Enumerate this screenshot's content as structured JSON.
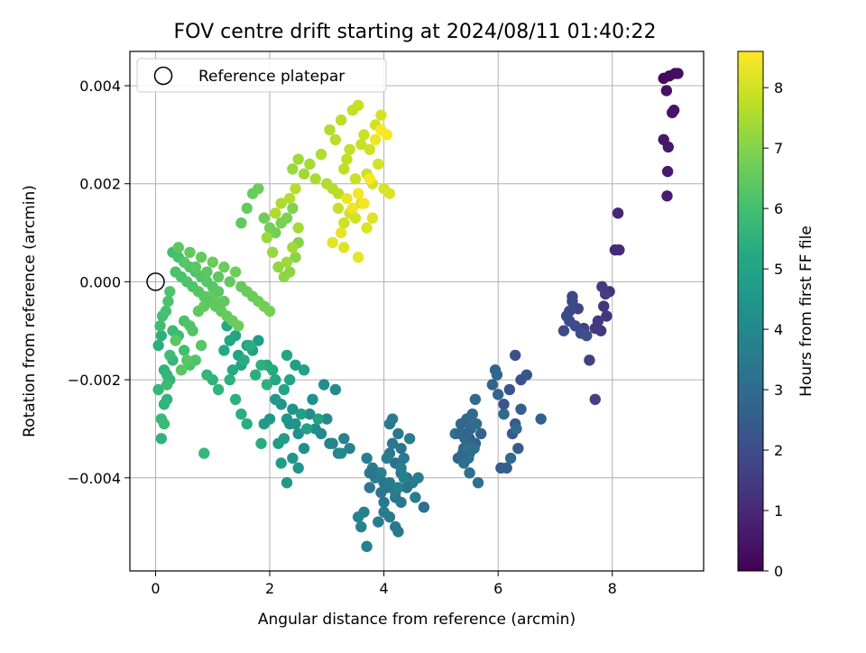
{
  "chart_data": {
    "type": "scatter",
    "title": "FOV centre drift starting at 2024/08/11 01:40:22",
    "xlabel": "Angular distance from reference (arcmin)",
    "ylabel": "Rotation from reference (arcmin)",
    "xlim": [
      -0.45,
      9.6
    ],
    "ylim": [
      -0.0059,
      0.0047
    ],
    "xticks": [
      0,
      2,
      4,
      6,
      8
    ],
    "xtick_labels": [
      "0",
      "2",
      "4",
      "6",
      "8"
    ],
    "yticks": [
      0.004,
      0.002,
      0.0,
      -0.002,
      -0.004
    ],
    "ytick_labels": [
      "0.004",
      "0.002",
      "0.000",
      "−0.002",
      "−0.004"
    ],
    "grid": true,
    "legend": {
      "position": "top-left",
      "entries": [
        {
          "label": "Reference platepar",
          "marker": "open-circle"
        }
      ]
    },
    "reference_point": {
      "x": 0,
      "y": 0
    },
    "colorbar": {
      "label": "Hours from first FF file",
      "colormap": "viridis",
      "range": [
        0,
        8.6
      ],
      "ticks": [
        0,
        1,
        2,
        3,
        4,
        5,
        6,
        7,
        8
      ],
      "tick_labels": [
        "0",
        "1",
        "2",
        "3",
        "4",
        "5",
        "6",
        "7",
        "8"
      ]
    },
    "series": [
      {
        "color_by": "hours",
        "x": [
          8.9,
          9.0,
          9.1,
          9.15,
          8.95,
          9.05,
          9.08,
          8.9,
          8.98,
          8.97,
          8.96,
          8.1,
          8.05,
          8.12,
          7.95,
          7.85,
          7.9,
          7.8,
          7.7,
          7.75,
          7.82,
          7.88,
          7.6,
          7.7,
          7.5,
          7.4,
          7.3,
          7.2,
          7.15,
          7.25,
          7.35,
          7.45,
          7.55,
          7.3,
          7.25,
          6.3,
          6.4,
          6.2,
          6.1,
          6.5,
          6.3,
          6.25,
          6.35,
          6.05,
          6.15,
          6.4,
          6.75,
          5.95,
          5.9,
          6.0,
          5.98,
          6.1,
          6.32,
          6.22,
          5.6,
          5.7,
          5.5,
          5.4,
          5.3,
          5.35,
          5.45,
          5.55,
          5.6,
          5.5,
          5.4,
          5.25,
          5.5,
          5.65,
          5.6,
          5.45,
          5.52,
          5.42,
          5.58,
          5.48,
          5.38,
          5.62,
          5.47,
          5.33,
          4.7,
          4.4,
          4.3,
          4.2,
          4.1,
          4.3,
          4.15,
          4.25,
          4.35,
          4.5,
          4.6,
          4.05,
          4.0,
          3.95,
          3.9,
          3.8,
          3.75,
          3.7,
          3.85,
          4.2,
          4.3,
          4.1,
          4.0,
          3.9,
          4.4,
          4.2,
          4.25,
          4.1,
          4.15,
          4.45,
          4.55,
          3.65,
          3.6,
          3.55,
          3.7,
          3.8,
          3.75,
          4.0,
          4.1,
          4.2,
          4.3,
          4.05,
          3.95,
          4.35,
          4.25,
          3.4,
          3.3,
          3.2,
          3.1,
          3.0,
          2.9,
          2.8,
          2.7,
          2.6,
          2.5,
          2.45,
          2.4,
          2.35,
          2.3,
          2.2,
          2.1,
          2.0,
          1.9,
          2.15,
          2.25,
          2.55,
          2.65,
          2.85,
          3.05,
          3.25,
          3.15,
          2.95,
          2.75,
          2.5,
          2.4,
          2.3,
          2.2,
          2.45,
          2.6,
          2.3,
          2.35,
          2.25,
          2.1,
          1.95,
          2.05,
          1.8,
          1.7,
          1.6,
          1.5,
          1.45,
          1.4,
          1.3,
          1.2,
          1.25,
          1.35,
          1.55,
          1.65,
          1.75,
          1.85,
          1.95,
          1.85,
          1.6,
          1.5,
          1.4,
          1.3,
          1.0,
          1.1,
          0.9,
          0.85,
          0.05,
          0.1,
          0.15,
          0.2,
          0.25,
          0.3,
          0.05,
          0.1,
          0.15,
          0.2,
          0.25,
          0.08,
          0.12,
          0.18,
          0.22,
          0.1,
          0.15,
          0.2,
          0.3,
          0.4,
          0.5,
          0.6,
          0.7,
          0.8,
          0.5,
          0.6,
          0.65,
          0.55,
          0.45,
          0.35,
          0.75,
          0.85,
          0.95,
          1.05,
          0.3,
          0.4,
          0.5,
          0.6,
          0.7,
          0.8,
          0.9,
          1.0,
          1.1,
          1.2,
          0.35,
          0.45,
          0.55,
          0.65,
          0.75,
          0.85,
          0.95,
          1.05,
          1.15,
          1.25,
          1.35,
          1.45,
          0.25,
          0.5,
          0.7,
          0.9,
          1.1,
          1.3,
          1.5,
          1.6,
          1.7,
          1.8,
          1.9,
          2.0,
          0.4,
          0.6,
          0.8,
          1.0,
          1.2,
          1.4,
          1.5,
          1.6,
          1.7,
          1.8,
          1.9,
          2.0,
          2.1,
          2.2,
          2.3,
          2.4,
          2.5,
          2.45,
          2.35,
          2.25,
          2.15,
          2.05,
          1.95,
          2.3,
          2.4,
          2.5,
          2.2,
          2.1,
          2.35,
          2.45,
          2.4,
          2.5,
          2.6,
          2.7,
          2.8,
          2.9,
          3.0,
          3.1,
          3.2,
          3.3,
          3.4,
          3.5,
          3.6,
          3.7,
          3.8,
          3.9,
          4.0,
          4.1,
          3.05,
          3.15,
          3.25,
          3.35,
          3.45,
          3.55,
          3.65,
          3.75,
          3.85,
          3.95,
          3.2,
          3.3,
          3.4,
          3.5,
          3.6,
          3.7,
          3.8,
          3.1,
          3.25,
          3.35,
          3.45,
          3.55,
          3.65,
          3.75,
          3.3,
          3.55,
          3.85,
          4.05,
          3.95
        ],
        "y": [
          0.00415,
          0.0042,
          0.00425,
          0.00425,
          0.0039,
          0.00345,
          0.0035,
          0.0029,
          0.00275,
          0.00225,
          0.00175,
          0.0014,
          0.00065,
          0.00065,
          -0.0002,
          -0.0005,
          -0.0007,
          -0.001,
          -0.00095,
          -0.0008,
          -0.0001,
          -0.00025,
          -0.0016,
          -0.0024,
          -0.00095,
          -0.00055,
          -0.0003,
          -0.0007,
          -0.001,
          -0.0008,
          -0.0009,
          -0.00105,
          -0.0011,
          -0.0004,
          -0.0006,
          -0.0015,
          -0.002,
          -0.0022,
          -0.0025,
          -0.0019,
          -0.0029,
          -0.0031,
          -0.0034,
          -0.0038,
          -0.0038,
          -0.0026,
          -0.0028,
          -0.0018,
          -0.0021,
          -0.0023,
          -0.0019,
          -0.0027,
          -0.003,
          -0.0036,
          -0.0033,
          -0.0031,
          -0.0032,
          -0.0034,
          -0.0036,
          -0.0029,
          -0.0028,
          -0.0027,
          -0.0024,
          -0.0035,
          -0.0037,
          -0.0031,
          -0.0039,
          -0.0041,
          -0.0033,
          -0.0031,
          -0.003,
          -0.0032,
          -0.0034,
          -0.0036,
          -0.0035,
          -0.0029,
          -0.0034,
          -0.0031,
          -0.0046,
          -0.004,
          -0.0039,
          -0.0037,
          -0.0035,
          -0.0034,
          -0.0033,
          -0.0031,
          -0.0036,
          -0.0041,
          -0.004,
          -0.0042,
          -0.0041,
          -0.0043,
          -0.0039,
          -0.0038,
          -0.0039,
          -0.0036,
          -0.004,
          -0.0044,
          -0.0045,
          -0.0048,
          -0.0047,
          -0.0049,
          -0.0042,
          -0.005,
          -0.0051,
          -0.0029,
          -0.0028,
          -0.0032,
          -0.0044,
          -0.0047,
          -0.005,
          -0.0048,
          -0.0054,
          -0.0039,
          -0.0042,
          -0.0045,
          -0.0041,
          -0.0043,
          -0.0038,
          -0.0036,
          -0.0039,
          -0.004,
          -0.0042,
          -0.0034,
          -0.0032,
          -0.0035,
          -0.0033,
          -0.0028,
          -0.0031,
          -0.003,
          -0.0027,
          -0.0034,
          -0.0031,
          -0.0029,
          -0.0026,
          -0.0029,
          -0.0028,
          -0.0025,
          -0.0024,
          -0.0028,
          -0.0029,
          -0.0033,
          -0.0032,
          -0.0027,
          -0.003,
          -0.0028,
          -0.0033,
          -0.0035,
          -0.0022,
          -0.0021,
          -0.0024,
          -0.0038,
          -0.0036,
          -0.0041,
          -0.0037,
          -0.0017,
          -0.0018,
          -0.0015,
          -0.002,
          -0.0022,
          -0.002,
          -0.0017,
          -0.0018,
          -0.0012,
          -0.0014,
          -0.0013,
          -0.0017,
          -0.0015,
          -0.0011,
          -0.0012,
          -0.0014,
          -0.0009,
          -0.0018,
          -0.0016,
          -0.0013,
          -0.0019,
          -0.0017,
          -0.0021,
          -0.0033,
          -0.0029,
          -0.0027,
          -0.0024,
          -0.002,
          -0.002,
          -0.0022,
          -0.0019,
          -0.0035,
          -0.0013,
          -0.0011,
          -0.0018,
          -0.0024,
          -0.002,
          -0.0016,
          -0.0022,
          -0.0028,
          -0.0029,
          -0.0021,
          -0.0015,
          -0.0009,
          -0.0007,
          -0.0006,
          -0.0004,
          -0.0032,
          -0.0025,
          -0.0019,
          -0.001,
          -0.0011,
          -0.0014,
          -0.0017,
          -0.0016,
          -0.0013,
          -0.0008,
          -0.0009,
          -0.001,
          -0.0016,
          -0.0018,
          -0.0012,
          -0.0006,
          -0.0005,
          -0.0003,
          -0.0004,
          0.0006,
          0.0005,
          0.0004,
          0.0003,
          0.0002,
          0.0001,
          0.0,
          -0.0001,
          -0.0002,
          -0.0004,
          0.0002,
          0.0001,
          0.0,
          -0.0001,
          -0.0002,
          -0.0003,
          -0.0004,
          -0.0005,
          -0.0006,
          -0.0007,
          -0.0008,
          -0.0009,
          -0.0002,
          0.0004,
          0.0003,
          0.0002,
          0.0001,
          0.0,
          -0.0001,
          -0.0002,
          -0.0003,
          -0.0004,
          -0.0005,
          -0.0006,
          0.0007,
          0.0006,
          0.0005,
          0.0004,
          0.0003,
          0.0002,
          0.0012,
          0.0015,
          0.0018,
          0.0019,
          0.0013,
          0.0011,
          0.001,
          0.0012,
          0.0013,
          0.0015,
          0.0008,
          0.0005,
          0.0002,
          0.0001,
          0.0003,
          0.0006,
          0.0009,
          0.0004,
          0.0007,
          0.0011,
          0.0016,
          0.0014,
          0.0017,
          0.0019,
          0.0023,
          0.0025,
          0.0022,
          0.0024,
          0.0021,
          0.0026,
          0.002,
          0.0019,
          0.0018,
          0.0023,
          0.0027,
          0.0021,
          0.0028,
          0.0022,
          0.002,
          0.0024,
          0.0019,
          0.0018,
          0.0031,
          0.0029,
          0.0033,
          0.0025,
          0.0035,
          0.0036,
          0.003,
          0.0027,
          0.0032,
          0.0034,
          0.0015,
          0.0012,
          0.0014,
          0.0013,
          0.0016,
          0.0011,
          0.0013,
          0.0008,
          0.001,
          0.0017,
          0.0015,
          0.0018,
          0.0016,
          0.0021,
          0.0007,
          0.0005,
          0.0029,
          0.003,
          0.0031
        ],
        "hours": [
          0.2,
          0.25,
          0.3,
          0.35,
          0.4,
          0.45,
          0.5,
          0.55,
          0.6,
          0.65,
          0.7,
          0.9,
          1.0,
          1.05,
          1.2,
          1.25,
          1.3,
          1.35,
          1.4,
          1.45,
          1.5,
          1.55,
          1.6,
          1.65,
          1.7,
          1.75,
          1.8,
          1.85,
          1.9,
          1.95,
          2.0,
          2.05,
          2.1,
          1.85,
          1.9,
          2.1,
          2.15,
          2.2,
          2.25,
          2.3,
          2.35,
          2.4,
          2.45,
          2.5,
          2.55,
          2.6,
          2.65,
          2.7,
          2.75,
          2.8,
          2.85,
          2.9,
          2.95,
          3.0,
          2.6,
          2.65,
          2.7,
          2.75,
          2.8,
          2.85,
          2.9,
          2.95,
          3.0,
          3.05,
          3.1,
          3.15,
          3.2,
          3.25,
          2.7,
          2.8,
          2.9,
          3.0,
          3.1,
          3.2,
          2.95,
          3.05,
          3.15,
          2.85,
          3.1,
          3.15,
          3.2,
          3.25,
          3.3,
          3.35,
          3.4,
          3.45,
          3.5,
          3.55,
          3.6,
          3.3,
          3.35,
          3.4,
          3.45,
          3.5,
          3.55,
          3.6,
          3.65,
          3.4,
          3.45,
          3.5,
          3.55,
          3.6,
          3.3,
          3.4,
          3.45,
          3.5,
          3.55,
          3.6,
          3.65,
          3.7,
          3.75,
          3.8,
          3.7,
          3.35,
          3.4,
          3.45,
          3.5,
          3.55,
          3.6,
          3.65,
          3.7,
          3.75,
          3.8,
          3.8,
          3.85,
          3.9,
          3.95,
          4.0,
          4.05,
          4.1,
          4.15,
          4.2,
          4.25,
          4.3,
          4.35,
          4.4,
          4.45,
          4.5,
          4.55,
          4.6,
          4.65,
          4.7,
          4.75,
          4.8,
          4.85,
          4.9,
          3.9,
          4.0,
          4.1,
          4.2,
          4.3,
          4.4,
          4.5,
          4.6,
          4.7,
          4.8,
          4.9,
          5.0,
          5.05,
          5.1,
          5.15,
          5.2,
          5.25,
          4.8,
          4.85,
          4.9,
          4.95,
          5.0,
          5.05,
          5.1,
          5.15,
          5.2,
          5.25,
          5.3,
          5.35,
          5.4,
          5.45,
          5.5,
          5.3,
          5.35,
          5.4,
          5.45,
          5.5,
          5.55,
          5.6,
          5.65,
          5.7,
          5.4,
          5.45,
          5.5,
          5.55,
          5.6,
          5.65,
          5.7,
          5.75,
          5.8,
          5.85,
          5.9,
          5.95,
          6.0,
          6.05,
          6.1,
          5.5,
          5.6,
          5.7,
          5.8,
          5.9,
          6.0,
          6.1,
          6.2,
          6.3,
          6.15,
          6.2,
          6.25,
          6.3,
          6.35,
          6.4,
          6.45,
          6.5,
          6.55,
          6.6,
          6.0,
          6.05,
          6.1,
          6.15,
          6.2,
          6.25,
          6.3,
          6.35,
          6.4,
          6.45,
          6.1,
          6.15,
          6.2,
          6.25,
          6.3,
          6.35,
          6.4,
          6.45,
          6.5,
          6.55,
          6.6,
          6.65,
          6.2,
          6.3,
          6.35,
          6.4,
          6.45,
          6.5,
          6.55,
          6.6,
          6.65,
          6.7,
          6.75,
          6.8,
          6.4,
          6.5,
          6.55,
          6.6,
          6.65,
          6.7,
          6.5,
          6.55,
          6.6,
          6.65,
          6.7,
          6.75,
          6.8,
          6.85,
          6.9,
          6.95,
          7.0,
          7.05,
          7.1,
          7.15,
          7.2,
          7.25,
          7.3,
          7.35,
          7.4,
          7.45,
          7.5,
          7.55,
          7.6,
          7.65,
          7.3,
          7.35,
          7.4,
          7.45,
          7.5,
          7.55,
          7.6,
          7.65,
          7.7,
          7.75,
          7.8,
          7.85,
          7.9,
          7.95,
          8.0,
          8.05,
          8.1,
          8.15,
          7.6,
          7.65,
          7.7,
          7.75,
          7.8,
          7.85,
          7.9,
          7.95,
          8.0,
          8.05,
          7.9,
          7.95,
          8.0,
          8.05,
          8.1,
          8.15,
          8.2,
          8.25,
          8.3,
          8.35,
          8.4,
          8.45,
          8.5,
          8.55,
          8.2,
          8.3,
          8.4,
          8.5,
          8.55
        ]
      }
    ]
  }
}
